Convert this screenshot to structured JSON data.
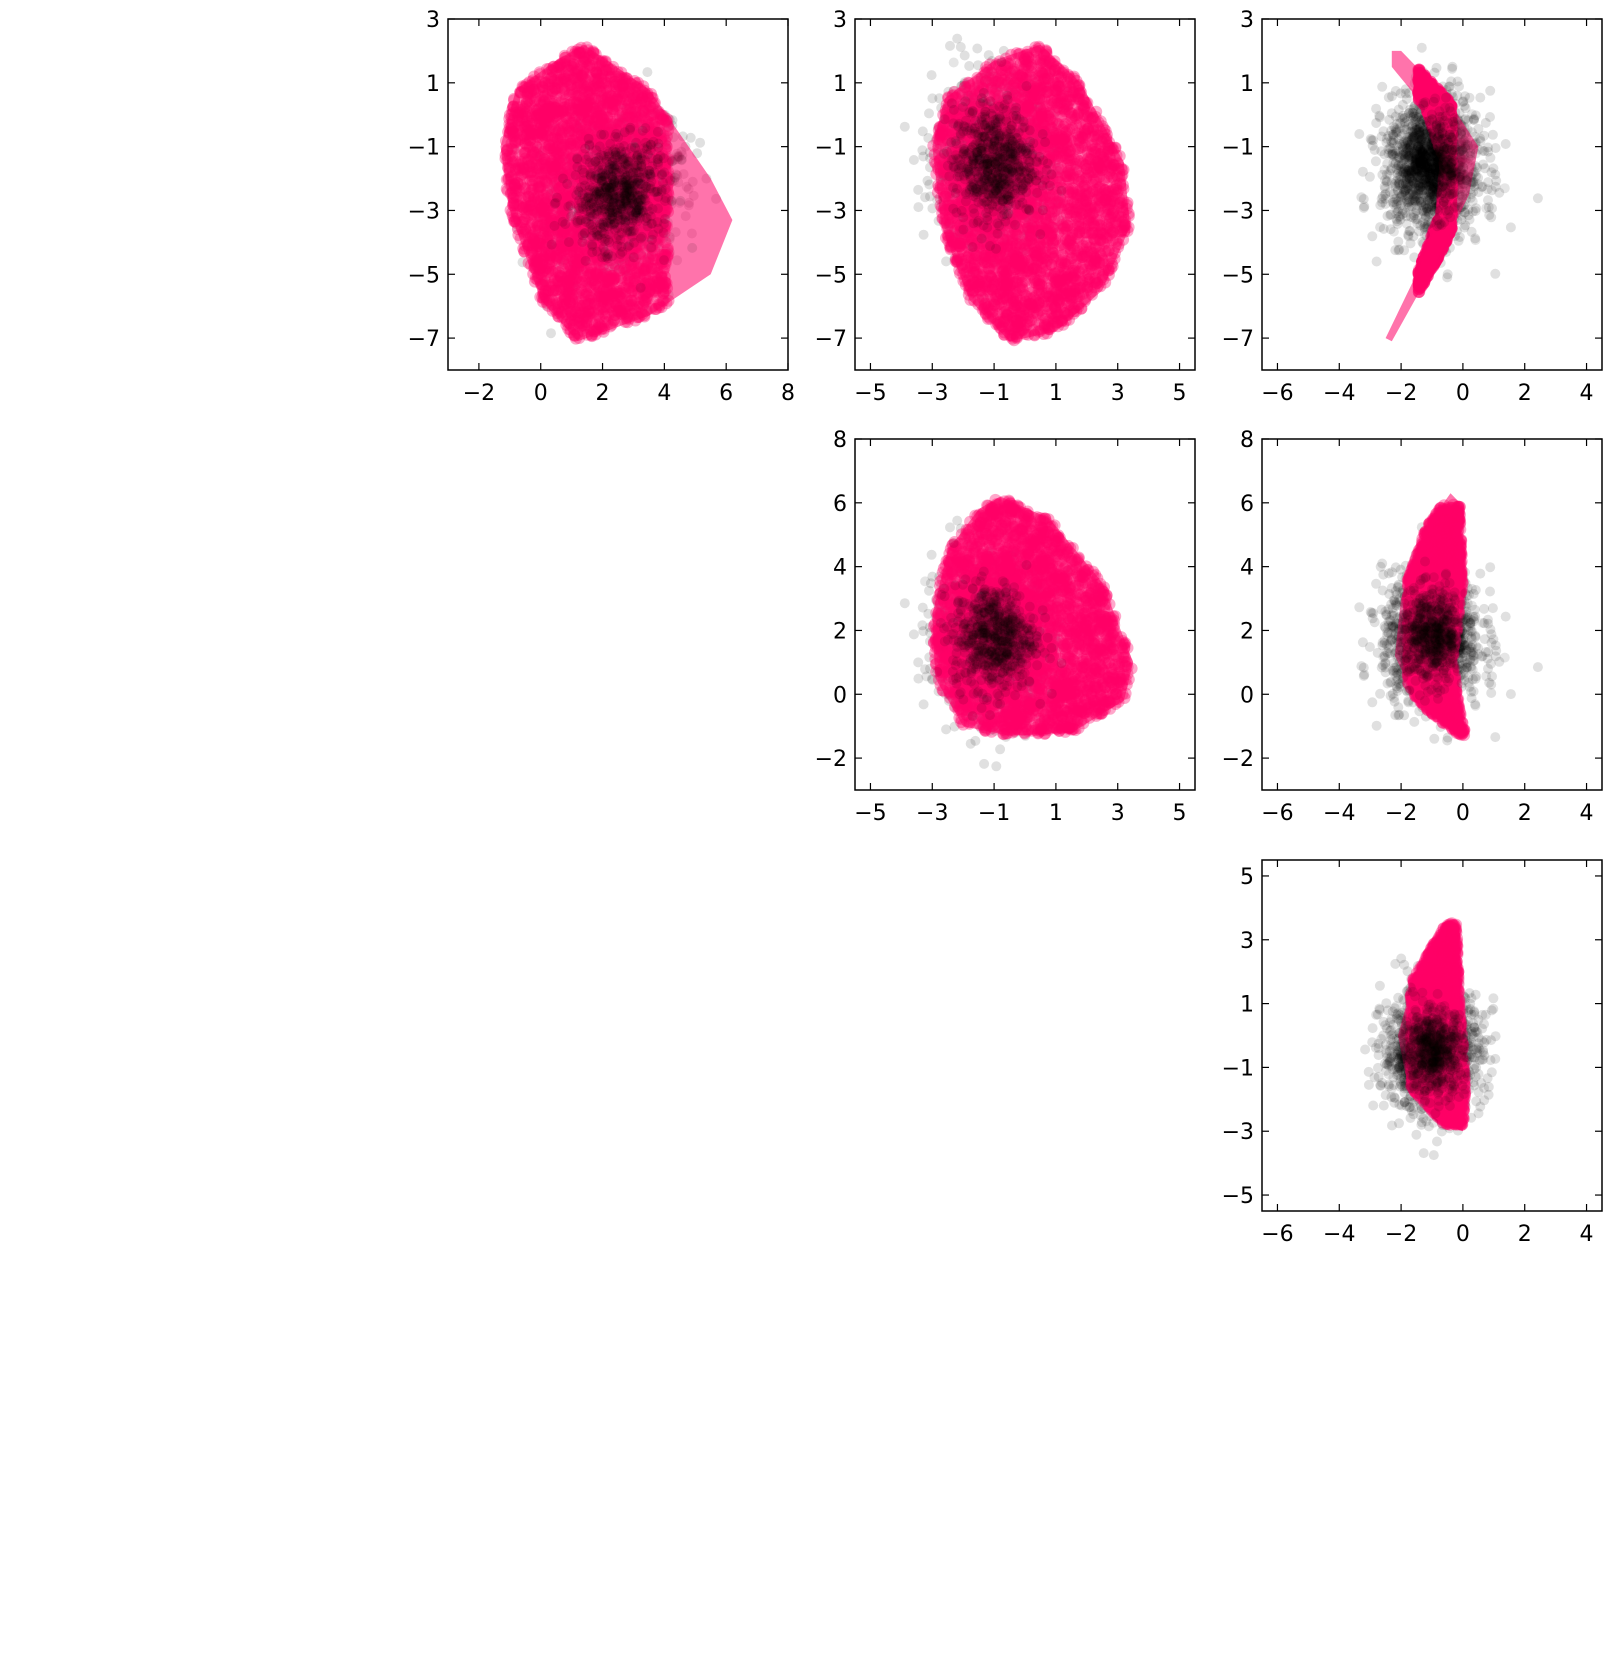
{
  "colors": {
    "series_a": "#ff0066",
    "series_b": "#000000",
    "frame": "#000000",
    "background": "#ffffff"
  },
  "chart_data": [
    {
      "type": "scatter",
      "panel": "row1-col1",
      "grid": false,
      "xlim": [
        -3,
        8
      ],
      "ylim": [
        -8,
        3
      ],
      "xticks": [
        -2,
        0,
        2,
        4,
        6,
        8
      ],
      "yticks": [
        3,
        1,
        -1,
        -3,
        -5,
        -7
      ],
      "xtick_labels": [
        "−2",
        "0",
        "2",
        "4",
        "6",
        "8"
      ],
      "ytick_labels": [
        "3",
        "1",
        "−1",
        "−3",
        "−5",
        "−7"
      ],
      "series": [
        {
          "color": "#000000",
          "alpha": 0.12,
          "center": [
            2.5,
            -2.5
          ],
          "spread": [
            1.2,
            1.5
          ],
          "rotation_deg": -20
        },
        {
          "color": "#ff0066",
          "alpha": 0.9,
          "center": [
            1.5,
            -2.4
          ],
          "spread": [
            2.4,
            4.6
          ],
          "rotation_deg": -10,
          "hull": [
            [
              1.4,
              2.2
            ],
            [
              3.5,
              0.8
            ],
            [
              5.5,
              -2.0
            ],
            [
              6.2,
              -3.3
            ],
            [
              5.5,
              -5.0
            ],
            [
              3.5,
              -6.3
            ],
            [
              1.2,
              -7.1
            ],
            [
              0.0,
              -5.8
            ],
            [
              -1.0,
              -3.0
            ],
            [
              -1.3,
              -1.0
            ],
            [
              -0.8,
              0.8
            ],
            [
              0.5,
              1.7
            ]
          ]
        }
      ]
    },
    {
      "type": "scatter",
      "panel": "row1-col2",
      "grid": false,
      "xlim": [
        -5.5,
        5.5
      ],
      "ylim": [
        -8,
        3
      ],
      "xticks": [
        -5,
        -3,
        -1,
        1,
        3,
        5
      ],
      "yticks": [
        3,
        1,
        -1,
        -3,
        -5,
        -7
      ],
      "xtick_labels": [
        "−5",
        "−3",
        "−1",
        "1",
        "3",
        "5"
      ],
      "ytick_labels": [
        "3",
        "1",
        "−1",
        "−3",
        "−5",
        "−7"
      ],
      "series": [
        {
          "color": "#000000",
          "alpha": 0.12,
          "center": [
            -1.0,
            -1.5
          ],
          "spread": [
            1.2,
            1.6
          ],
          "rotation_deg": 0
        },
        {
          "color": "#ff0066",
          "alpha": 0.9,
          "center": [
            0.1,
            -2.4
          ],
          "spread": [
            3.4,
            4.6
          ],
          "rotation_deg": 0,
          "hull": [
            [
              0.5,
              2.2
            ],
            [
              1.8,
              1.0
            ],
            [
              3.2,
              -1.5
            ],
            [
              3.4,
              -3.5
            ],
            [
              2.5,
              -5.5
            ],
            [
              1.0,
              -6.8
            ],
            [
              -0.5,
              -7.1
            ],
            [
              -1.8,
              -5.8
            ],
            [
              -2.7,
              -3.5
            ],
            [
              -3.0,
              -1.0
            ],
            [
              -2.6,
              0.5
            ],
            [
              -1.0,
              1.7
            ]
          ]
        }
      ]
    },
    {
      "type": "scatter",
      "panel": "row1-col3",
      "grid": false,
      "xlim": [
        -6.5,
        4.5
      ],
      "ylim": [
        -8,
        3
      ],
      "xticks": [
        -6,
        -4,
        -2,
        0,
        2,
        4
      ],
      "yticks": [
        3,
        1,
        -1,
        -3,
        -5,
        -7
      ],
      "xtick_labels": [
        "−6",
        "−4",
        "−2",
        "0",
        "2",
        "4"
      ],
      "ytick_labels": [
        "3",
        "1",
        "−1",
        "−3",
        "−5",
        "−7"
      ],
      "series": [
        {
          "color": "#000000",
          "alpha": 0.12,
          "center": [
            -1.0,
            -1.6
          ],
          "spread": [
            1.0,
            1.4
          ],
          "rotation_deg": 0
        },
        {
          "color": "#ff0066",
          "alpha": 0.95,
          "center": [
            -0.9,
            -2.5
          ],
          "spread": [
            0.5,
            4.5
          ],
          "rotation_deg": 0,
          "hull": [
            [
              -2.3,
              2.0
            ],
            [
              -2.0,
              2.0
            ],
            [
              -0.5,
              0.5
            ],
            [
              0.5,
              -1.0
            ],
            [
              0.2,
              -2.5
            ],
            [
              -0.8,
              -4.5
            ],
            [
              -2.3,
              -7.1
            ],
            [
              -2.5,
              -7.0
            ],
            [
              -1.5,
              -5.0
            ],
            [
              -0.7,
              -3.0
            ],
            [
              -0.6,
              -1.5
            ],
            [
              -1.2,
              0.2
            ],
            [
              -2.3,
              1.5
            ]
          ]
        }
      ]
    },
    {
      "type": "scatter",
      "panel": "row2-col2",
      "grid": false,
      "xlim": [
        -5.5,
        5.5
      ],
      "ylim": [
        -3,
        8
      ],
      "xticks": [
        -5,
        -3,
        -1,
        1,
        3,
        5
      ],
      "yticks": [
        8,
        6,
        4,
        2,
        0,
        -2
      ],
      "xtick_labels": [
        "−5",
        "−3",
        "−1",
        "1",
        "3",
        "5"
      ],
      "ytick_labels": [
        "8",
        "6",
        "4",
        "2",
        "0",
        "−2"
      ],
      "series": [
        {
          "color": "#000000",
          "alpha": 0.12,
          "center": [
            -1.0,
            1.8
          ],
          "spread": [
            1.2,
            1.5
          ],
          "rotation_deg": 0
        },
        {
          "color": "#ff0066",
          "alpha": 0.9,
          "center": [
            0.1,
            2.4
          ],
          "spread": [
            3.4,
            3.5
          ],
          "rotation_deg": 0,
          "hull": [
            [
              -0.8,
              6.2
            ],
            [
              0.8,
              5.5
            ],
            [
              2.5,
              3.5
            ],
            [
              3.5,
              1.0
            ],
            [
              3.2,
              -0.2
            ],
            [
              1.5,
              -1.2
            ],
            [
              -0.5,
              -1.3
            ],
            [
              -2.0,
              -1.0
            ],
            [
              -2.9,
              0.5
            ],
            [
              -3.0,
              2.5
            ],
            [
              -2.5,
              4.5
            ],
            [
              -1.5,
              5.8
            ]
          ]
        }
      ]
    },
    {
      "type": "scatter",
      "panel": "row2-col3",
      "grid": false,
      "xlim": [
        -6.5,
        4.5
      ],
      "ylim": [
        -3,
        8
      ],
      "xticks": [
        -6,
        -4,
        -2,
        0,
        2,
        4
      ],
      "yticks": [
        8,
        6,
        4,
        2,
        0,
        -2
      ],
      "xtick_labels": [
        "−6",
        "−4",
        "−2",
        "0",
        "2",
        "4"
      ],
      "ytick_labels": [
        "8",
        "6",
        "4",
        "2",
        "0",
        "−2"
      ],
      "series": [
        {
          "color": "#000000",
          "alpha": 0.12,
          "center": [
            -1.0,
            1.8
          ],
          "spread": [
            1.0,
            1.3
          ],
          "rotation_deg": 0
        },
        {
          "color": "#ff0066",
          "alpha": 0.9,
          "center": [
            -0.8,
            2.2
          ],
          "spread": [
            0.9,
            3.4
          ],
          "rotation_deg": 0,
          "hull": [
            [
              -0.4,
              6.3
            ],
            [
              -0.1,
              6.0
            ],
            [
              0.0,
              3.5
            ],
            [
              -0.3,
              1.0
            ],
            [
              -0.1,
              -0.5
            ],
            [
              0.1,
              -1.3
            ],
            [
              -0.3,
              -1.2
            ],
            [
              -1.5,
              -0.2
            ],
            [
              -2.2,
              1.2
            ],
            [
              -2.0,
              3.0
            ],
            [
              -1.2,
              5.2
            ]
          ]
        }
      ]
    },
    {
      "type": "scatter",
      "panel": "row3-col3",
      "grid": false,
      "xlim": [
        -6.5,
        4.5
      ],
      "ylim": [
        -5.5,
        5.5
      ],
      "xticks": [
        -6,
        -4,
        -2,
        0,
        2,
        4
      ],
      "yticks": [
        5,
        3,
        1,
        -1,
        -3,
        -5
      ],
      "xtick_labels": [
        "−6",
        "−4",
        "−2",
        "0",
        "2",
        "4"
      ],
      "ytick_labels": [
        "5",
        "3",
        "1",
        "−1",
        "−3",
        "−5"
      ],
      "series": [
        {
          "color": "#000000",
          "alpha": 0.12,
          "center": [
            -1.0,
            -0.5
          ],
          "spread": [
            1.0,
            1.2
          ],
          "rotation_deg": 0
        },
        {
          "color": "#ff0066",
          "alpha": 0.9,
          "center": [
            -0.7,
            0.5
          ],
          "spread": [
            0.9,
            3.0
          ],
          "rotation_deg": 0,
          "hull": [
            [
              -0.5,
              3.6
            ],
            [
              -0.2,
              3.5
            ],
            [
              -0.1,
              1.0
            ],
            [
              0.1,
              -1.5
            ],
            [
              0.0,
              -3.0
            ],
            [
              -0.6,
              -2.8
            ],
            [
              -1.8,
              -1.5
            ],
            [
              -2.1,
              0.0
            ],
            [
              -1.6,
              1.8
            ]
          ]
        }
      ]
    }
  ]
}
